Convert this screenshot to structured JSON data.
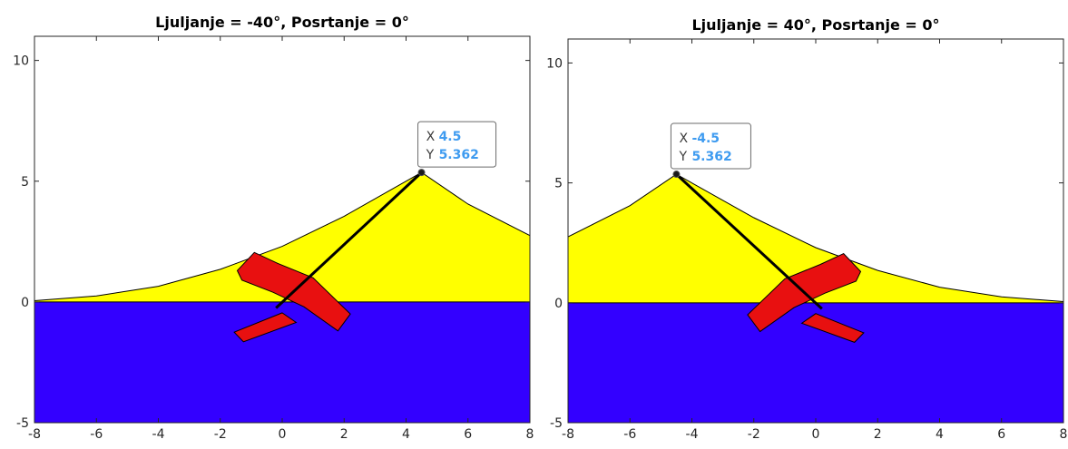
{
  "chart_data": [
    {
      "type": "area",
      "title": "Ljuljanje = -40°, Posrtanje = 0°",
      "xlabel": "",
      "ylabel": "",
      "xlim": [
        -8,
        8
      ],
      "ylim": [
        -5,
        11
      ],
      "xticks": [
        -8,
        -6,
        -4,
        -2,
        0,
        2,
        4,
        6,
        8
      ],
      "xtick_labels": [
        "-8",
        "-6",
        "-4",
        "-2",
        "0",
        "2",
        "4",
        "6",
        "8"
      ],
      "yticks": [
        -5,
        0,
        5,
        10
      ],
      "ytick_labels": [
        "-5",
        "0",
        "5",
        "10"
      ],
      "grid": false,
      "colors": {
        "water": "#3300ff",
        "surface": "#ffff00",
        "vessel": "#e81010"
      },
      "water_level": 0,
      "surface_profile": {
        "x": [
          -8,
          -6,
          -4,
          -2,
          0,
          2,
          4.5,
          6,
          8
        ],
        "y": [
          0.05,
          0.25,
          0.65,
          1.35,
          2.3,
          3.55,
          5.362,
          4.05,
          2.75
        ]
      },
      "pointer_line": {
        "x": [
          -0.2,
          4.5
        ],
        "y": [
          -0.25,
          5.362
        ]
      },
      "vessel": {
        "roll_deg": -40,
        "pitch_deg": 0,
        "hull": {
          "x": [
            -0.9,
            -1.45,
            -1.3,
            -0.3,
            0.7,
            1.8,
            2.2,
            1.0,
            -0.15
          ],
          "y": [
            2.05,
            1.3,
            0.9,
            0.4,
            -0.2,
            -1.2,
            -0.5,
            1.0,
            1.6
          ]
        },
        "keel": {
          "x": [
            0.0,
            -1.55,
            -1.25,
            0.45
          ],
          "y": [
            -0.45,
            -1.25,
            -1.65,
            -0.85
          ]
        }
      },
      "datatip": {
        "x_key": "X",
        "x_value": "4.5",
        "y_key": "Y",
        "y_value": "5.362",
        "x": 4.5,
        "y": 5.362
      }
    },
    {
      "type": "area",
      "title": "Ljuljanje = 40°, Posrtanje = 0°",
      "xlabel": "",
      "ylabel": "",
      "xlim": [
        -8,
        8
      ],
      "ylim": [
        -5,
        11
      ],
      "xticks": [
        -8,
        -6,
        -4,
        -2,
        0,
        2,
        4,
        6,
        8
      ],
      "xtick_labels": [
        "-8",
        "-6",
        "-4",
        "-2",
        "0",
        "2",
        "4",
        "6",
        "8"
      ],
      "yticks": [
        -5,
        0,
        5,
        10
      ],
      "ytick_labels": [
        "-5",
        "0",
        "5",
        "10"
      ],
      "grid": false,
      "colors": {
        "water": "#3300ff",
        "surface": "#ffff00",
        "vessel": "#e81010"
      },
      "water_level": 0,
      "surface_profile": {
        "x": [
          -8,
          -6,
          -4.5,
          -2,
          0,
          2,
          4,
          6,
          8
        ],
        "y": [
          2.75,
          4.05,
          5.362,
          3.55,
          2.3,
          1.35,
          0.65,
          0.25,
          0.05
        ]
      },
      "pointer_line": {
        "x": [
          -4.5,
          0.2
        ],
        "y": [
          5.362,
          -0.25
        ]
      },
      "vessel": {
        "roll_deg": 40,
        "pitch_deg": 0,
        "hull": {
          "x": [
            0.9,
            1.45,
            1.3,
            0.3,
            -0.7,
            -1.8,
            -2.2,
            -1.0,
            0.15
          ],
          "y": [
            2.05,
            1.3,
            0.9,
            0.4,
            -0.2,
            -1.2,
            -0.5,
            1.0,
            1.6
          ]
        },
        "keel": {
          "x": [
            0.0,
            1.55,
            1.25,
            -0.45
          ],
          "y": [
            -0.45,
            -1.25,
            -1.65,
            -0.85
          ]
        }
      },
      "datatip": {
        "x_key": "X",
        "x_value": "-4.5",
        "y_key": "Y",
        "y_value": "5.362",
        "x": -4.5,
        "y": 5.362
      }
    }
  ]
}
